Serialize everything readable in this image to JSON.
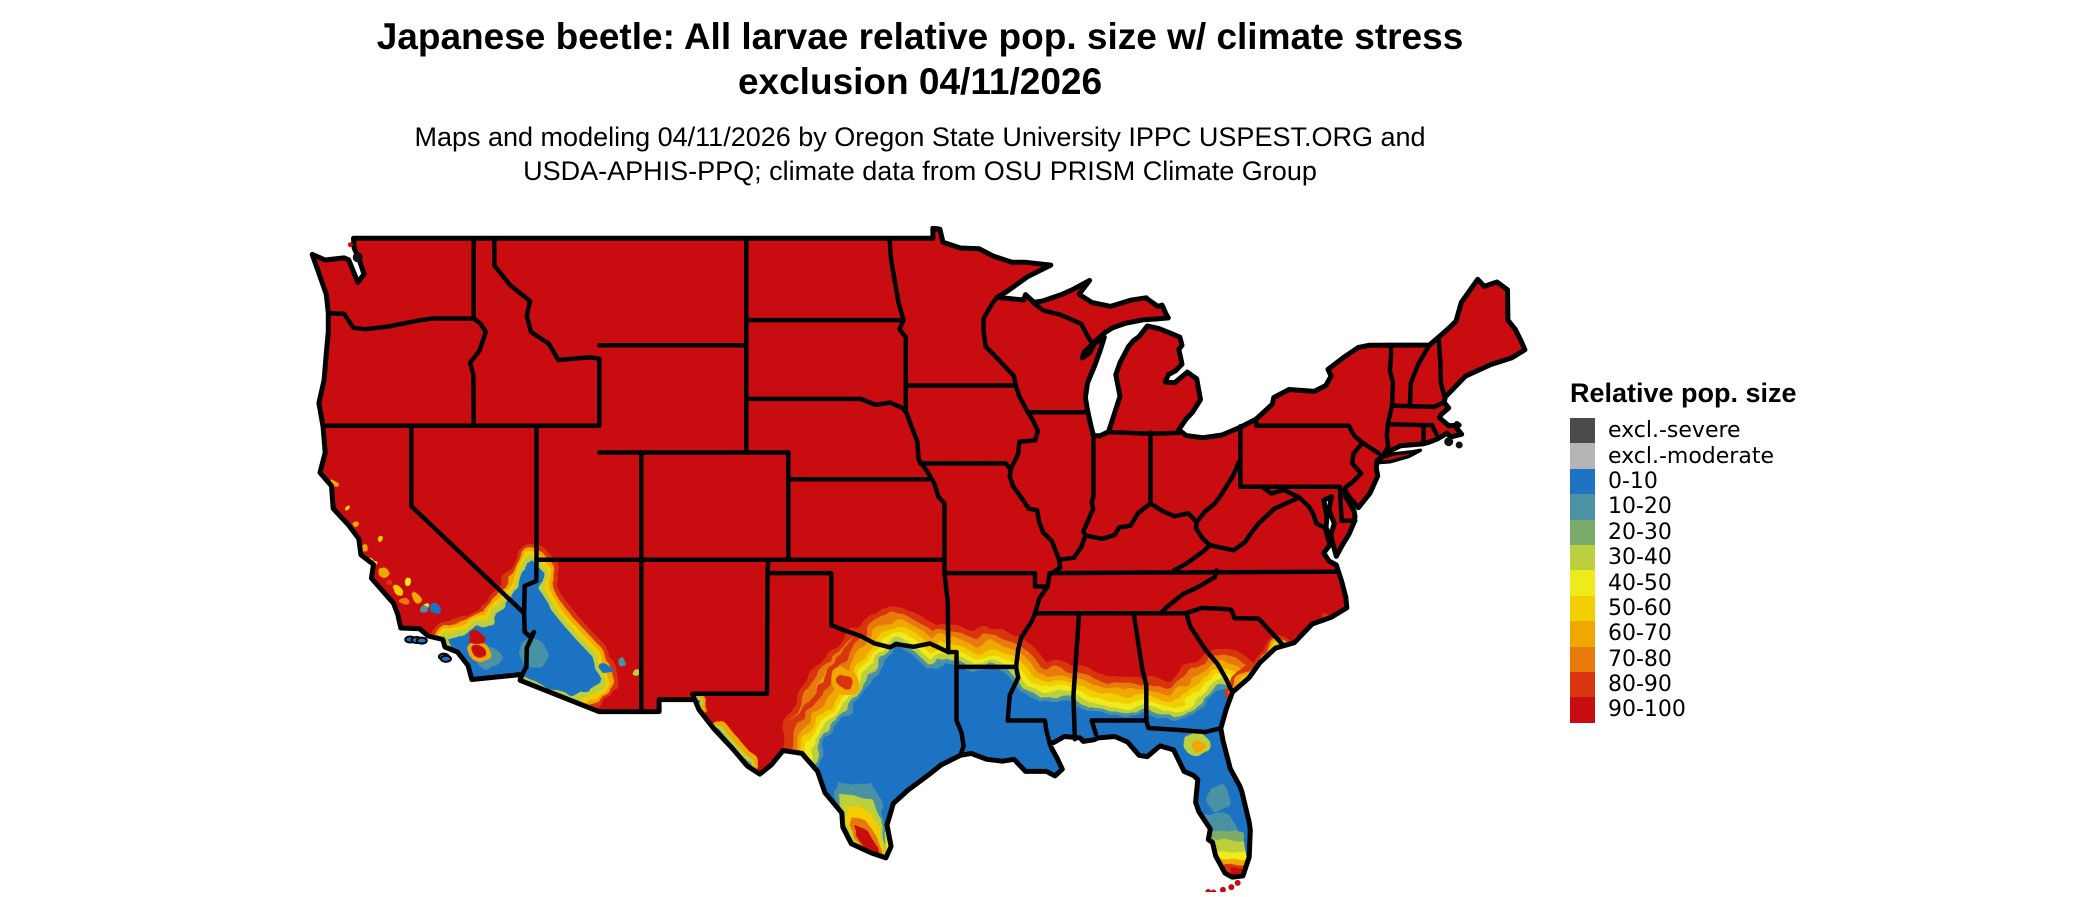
{
  "figure": {
    "title_line1": "Japanese beetle: All larvae relative pop. size w/ climate stress",
    "title_line2": "exclusion 04/11/2026",
    "subtitle_line1": "Maps and modeling 04/11/2026 by Oregon State University IPPC USPEST.ORG and",
    "subtitle_line2": "USDA-APHIS-PPQ; climate data from OSU PRISM Climate Group"
  },
  "legend": {
    "title": "Relative pop. size",
    "items": [
      {
        "label": "excl.-severe",
        "color": "#4a4a4a"
      },
      {
        "label": "excl.-moderate",
        "color": "#b5b5b8"
      },
      {
        "label": "0-10",
        "color": "#1e73c4"
      },
      {
        "label": "10-20",
        "color": "#4a92a4"
      },
      {
        "label": "20-30",
        "color": "#7bab6a"
      },
      {
        "label": "30-40",
        "color": "#bccf3e"
      },
      {
        "label": "40-50",
        "color": "#eeea1c"
      },
      {
        "label": "50-60",
        "color": "#f2ce02"
      },
      {
        "label": "60-70",
        "color": "#f0a800"
      },
      {
        "label": "70-80",
        "color": "#e87a0c"
      },
      {
        "label": "80-90",
        "color": "#d93511"
      },
      {
        "label": "90-100",
        "color": "#c80c10"
      }
    ]
  },
  "map": {
    "region": "Contiguous United States",
    "dominant_class": "90-100",
    "border_color": "#000000",
    "water_color": "#ffffff"
  }
}
